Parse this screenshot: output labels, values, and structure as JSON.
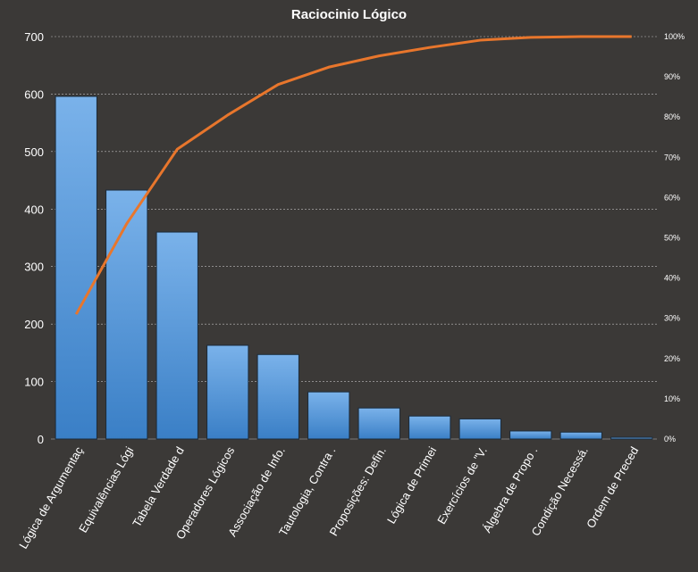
{
  "chart_data": {
    "type": "bar",
    "title": "Raciocinio  Lógico",
    "xlabel": "",
    "ylabel": "",
    "categories": [
      "Lógica de Argumentaç",
      "Equivalências Lógi",
      "Tabela Verdade d",
      "Operadores Lógicos",
      "Associação de Info.",
      "Tautologia, Contra .",
      "Proposições: Defin.",
      "Lógica de Primei",
      "Exercícios de \"V.",
      "Álgebra de Propo .",
      "Condição Necessá.",
      "Ordem de Preced"
    ],
    "series": [
      {
        "type": "bar",
        "values": [
          596,
          433,
          360,
          163,
          147,
          82,
          54,
          40,
          35,
          14,
          12,
          3
        ]
      },
      {
        "type": "line",
        "axis": "right",
        "values": [
          0.31,
          0.535,
          0.72,
          0.805,
          0.881,
          0.924,
          0.952,
          0.973,
          0.991,
          0.998,
          1.0,
          1.0
        ]
      }
    ],
    "ylim": [
      0,
      700
    ],
    "yticks": [
      "0",
      "100",
      "200",
      "300",
      "400",
      "500",
      "600",
      "700"
    ],
    "y2lim": [
      0,
      1
    ],
    "y2ticks": [
      "0%",
      "10%",
      "20%",
      "30%",
      "40%",
      "50%",
      "60%",
      "70%",
      "80%",
      "90%",
      "100%"
    ],
    "grid": true,
    "legend": "none",
    "colors": {
      "background": "#3b3937",
      "bar": "#4a90d9",
      "line": "#e8762c",
      "grid": "#bfbfbf",
      "text": "#ffffff"
    }
  }
}
